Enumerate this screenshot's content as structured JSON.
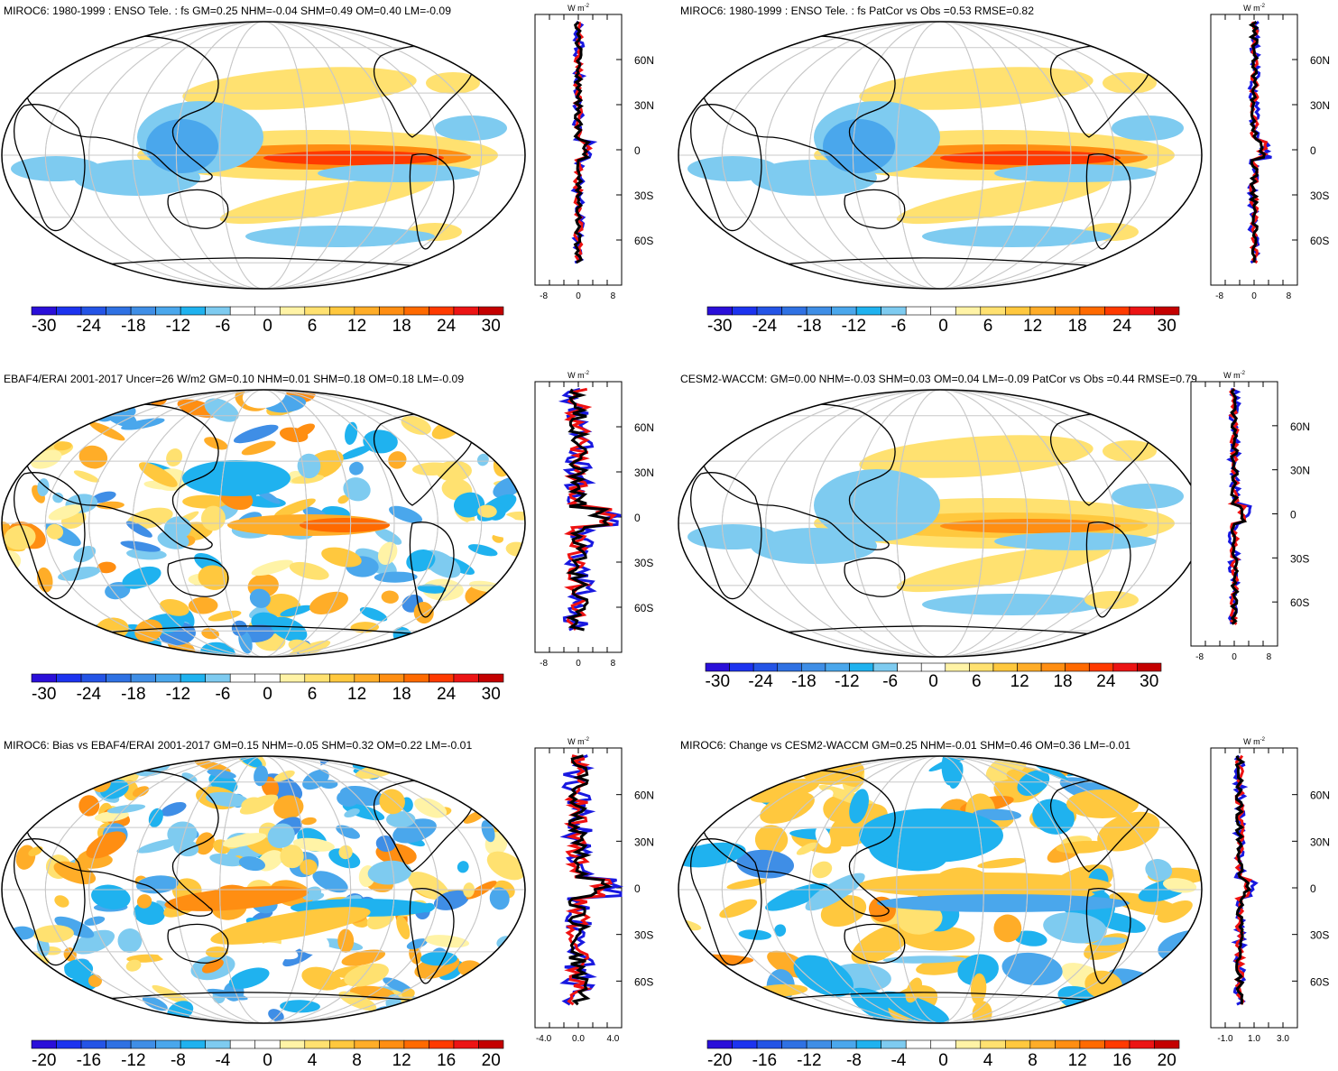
{
  "figure": {
    "unit_label": "W m",
    "unit_exponent": "-2",
    "lat_labels": [
      "60N",
      "30N",
      "0",
      "30S",
      "60S"
    ],
    "lat_values": [
      60,
      30,
      0,
      -30,
      -60
    ],
    "colors": {
      "palette": [
        "#2a0fd9",
        "#1c33ef",
        "#2454e6",
        "#2f71e3",
        "#3f8ee6",
        "#4aa7ec",
        "#1fb2ef",
        "#7ecbf0",
        "#ffffff",
        "#ffffff",
        "#fff3a6",
        "#ffe170",
        "#ffc83e",
        "#ffad28",
        "#ff8e12",
        "#ff6a00",
        "#ff3a00",
        "#ec1414",
        "#c40000"
      ],
      "land_outline": "#000000",
      "grid": "#c8c8c8",
      "line_red": "#ee1111",
      "line_blue": "#1818e0",
      "line_black": "#000000"
    }
  },
  "chart_data": [
    {
      "type": "heatmap",
      "title": "MIROC6: 1980-1999 : ENSO Tele. : fs GM=0.25 NHM=-0.04 SHM=0.49 OM=0.40 LM=-0.09",
      "colorbar_ticks": [
        "-30",
        "-24",
        "-18",
        "-12",
        "-6",
        "0",
        "6",
        "12",
        "18",
        "24",
        "30"
      ],
      "zonal_xticks": [
        "-8",
        "0",
        "8"
      ],
      "zonal_xlim": [
        -10,
        10
      ],
      "pattern": "enso"
    },
    {
      "type": "heatmap",
      "title": "MIROC6: 1980-1999 : ENSO Tele. : fs PatCor vs Obs =0.53 RMSE=0.82",
      "colorbar_ticks": [
        "-30",
        "-24",
        "-18",
        "-12",
        "-6",
        "0",
        "6",
        "12",
        "18",
        "24",
        "30"
      ],
      "zonal_xticks": [
        "-8",
        "0",
        "8"
      ],
      "zonal_xlim": [
        -10,
        10
      ],
      "pattern": "enso"
    },
    {
      "type": "heatmap",
      "title": "EBAF4/ERAI 2001-2017 Uncer=26 W/m2 GM=0.10 NHM=0.01 SHM=0.18 OM=0.18 LM=-0.09",
      "colorbar_ticks": [
        "-30",
        "-24",
        "-18",
        "-12",
        "-6",
        "0",
        "6",
        "12",
        "18",
        "24",
        "30"
      ],
      "zonal_xticks": [
        "-8",
        "0",
        "8"
      ],
      "zonal_xlim": [
        -10,
        10
      ],
      "pattern": "noisy"
    },
    {
      "type": "heatmap",
      "title": "CESM2-WACCM: GM=0.00 NHM=-0.03 SHM=0.03 OM=0.04 LM=-0.09 PatCor vs Obs =0.44 RMSE=0.79",
      "colorbar_ticks": [
        "-30",
        "-24",
        "-18",
        "-12",
        "-6",
        "0",
        "6",
        "12",
        "18",
        "24",
        "30"
      ],
      "zonal_xticks": [
        "-8",
        "0",
        "8"
      ],
      "zonal_xlim": [
        -10,
        10
      ],
      "pattern": "enso-weak"
    },
    {
      "type": "heatmap",
      "title": "MIROC6: Bias vs EBAF4/ERAI 2001-2017 GM=0.15 NHM=-0.05 SHM=0.32 OM=0.22 LM=-0.01",
      "colorbar_ticks": [
        "-20",
        "-16",
        "-12",
        "-8",
        "-4",
        "0",
        "4",
        "8",
        "12",
        "16",
        "20"
      ],
      "zonal_xticks": [
        "-4.0",
        "0.0",
        "4.0"
      ],
      "zonal_xlim": [
        -5,
        5
      ],
      "pattern": "bias"
    },
    {
      "type": "heatmap",
      "title": "MIROC6: Change vs CESM2-WACCM GM=0.25 NHM=-0.01 SHM=0.46 OM=0.36 LM=-0.01",
      "colorbar_ticks": [
        "-20",
        "-16",
        "-12",
        "-8",
        "-4",
        "0",
        "4",
        "8",
        "12",
        "16",
        "20"
      ],
      "zonal_xticks": [
        "-1.0",
        "1.0",
        "3.0"
      ],
      "zonal_xlim": [
        -2,
        4
      ],
      "pattern": "change"
    }
  ]
}
